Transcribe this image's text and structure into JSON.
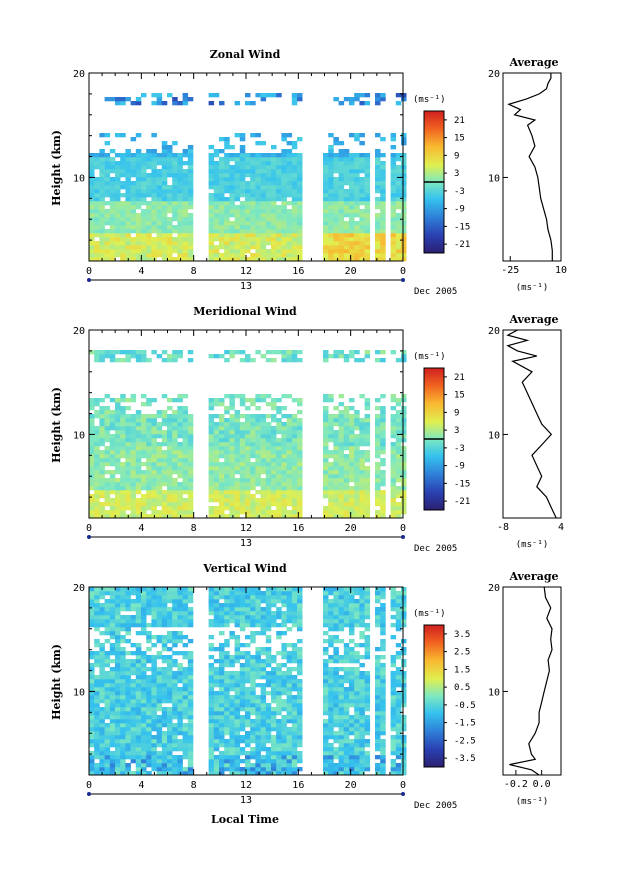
{
  "figure": {
    "date_label": "Dec 2005",
    "day_label": "13",
    "xlabel": "Local Time",
    "xticks": [
      "0",
      "4",
      "8",
      "12",
      "16",
      "20",
      "0"
    ]
  },
  "chart_data": [
    {
      "type": "heatmap",
      "title": "Zonal Wind",
      "ylabel": "Height (km)",
      "ylim": [
        2,
        20
      ],
      "yticks": [
        "10",
        "20"
      ],
      "xlim": [
        0,
        24
      ],
      "colorbar": {
        "unit": "(ms⁻¹)",
        "ticks": [
          "21",
          "15",
          "9",
          "3",
          "-3",
          "-9",
          "-15",
          "-21"
        ],
        "range": [
          -24,
          24
        ],
        "zero_line": 0
      },
      "data_gaps_hours": [
        [
          7.8,
          8.8
        ],
        [
          16.2,
          17.5
        ],
        [
          21.1,
          21.6
        ],
        [
          22.5,
          23.0
        ]
      ],
      "average": {
        "title": "Average",
        "xlabel": "(ms⁻¹)",
        "xticks": [
          "-25",
          "10"
        ],
        "xlim": [
          -30,
          10
        ],
        "yticks": [
          "10",
          "20"
        ],
        "height_km": [
          2,
          3,
          4,
          5,
          6,
          7,
          8,
          9,
          10,
          11,
          12,
          13,
          14,
          15,
          15.5,
          16,
          16.5,
          17,
          17.5,
          18,
          18.5,
          19,
          19.5,
          20
        ],
        "values": [
          4,
          4,
          3,
          1,
          0,
          -2,
          -4,
          -5,
          -6,
          -8,
          -12,
          -8,
          -10,
          -13,
          -8,
          -22,
          -18,
          -26,
          -14,
          -5,
          0,
          1,
          3,
          3
        ]
      }
    },
    {
      "type": "heatmap",
      "title": "Meridional Wind",
      "ylabel": "Height (km)",
      "ylim": [
        2,
        20
      ],
      "yticks": [
        "10",
        "20"
      ],
      "xlim": [
        0,
        24
      ],
      "colorbar": {
        "unit": "(ms⁻¹)",
        "ticks": [
          "21",
          "15",
          "9",
          "3",
          "-3",
          "-9",
          "-15",
          "-21"
        ],
        "range": [
          -24,
          24
        ],
        "zero_line": 0
      },
      "data_gaps_hours": [
        [
          7.8,
          8.8
        ],
        [
          16.2,
          17.5
        ],
        [
          21.1,
          21.6
        ],
        [
          22.5,
          23.0
        ]
      ],
      "average": {
        "title": "Average",
        "xlabel": "(ms⁻¹)",
        "xticks": [
          "-8",
          "4"
        ],
        "xlim": [
          -8,
          4
        ],
        "yticks": [
          "10",
          "20"
        ],
        "height_km": [
          2,
          3,
          4,
          5,
          6,
          7,
          8,
          9,
          10,
          11,
          12,
          13,
          14,
          15,
          16,
          17,
          17.5,
          18,
          18.5,
          19,
          19.5,
          20
        ],
        "values": [
          3,
          2,
          1,
          -1,
          0,
          -1,
          -2,
          0,
          2,
          0,
          -1,
          -2,
          -3,
          -4,
          -2,
          -6,
          -1,
          -5,
          -7,
          -3,
          -7,
          -5
        ]
      }
    },
    {
      "type": "heatmap",
      "title": "Vertical Wind",
      "ylabel": "Height (km)",
      "ylim": [
        2,
        20
      ],
      "yticks": [
        "10",
        "20"
      ],
      "xlim": [
        0,
        24
      ],
      "colorbar": {
        "unit": "(ms⁻¹)",
        "ticks": [
          "3.5",
          "2.5",
          "1.5",
          "0.5",
          "-0.5",
          "-1.5",
          "-2.5",
          "-3.5"
        ],
        "range": [
          -4,
          4
        ],
        "zero_line": null
      },
      "data_gaps_hours": [
        [
          7.8,
          8.8
        ],
        [
          16.2,
          17.5
        ],
        [
          21.1,
          21.6
        ],
        [
          22.5,
          23.0
        ]
      ],
      "average": {
        "title": "Average",
        "xlabel": "(ms⁻¹)",
        "xticks": [
          "-0.2",
          "0.0"
        ],
        "xlim": [
          -0.3,
          0.15
        ],
        "yticks": [
          "10",
          "20"
        ],
        "height_km": [
          2,
          2.5,
          3,
          3.5,
          4,
          5,
          6,
          7,
          8,
          9,
          10,
          11,
          12,
          13,
          14,
          15,
          16,
          17,
          18,
          19,
          20
        ],
        "values": [
          -0.02,
          -0.08,
          -0.25,
          -0.05,
          -0.08,
          -0.1,
          -0.05,
          -0.02,
          -0.02,
          0.0,
          0.02,
          0.04,
          0.06,
          0.05,
          0.08,
          0.07,
          0.08,
          0.04,
          0.07,
          0.03,
          0.02
        ]
      }
    }
  ]
}
